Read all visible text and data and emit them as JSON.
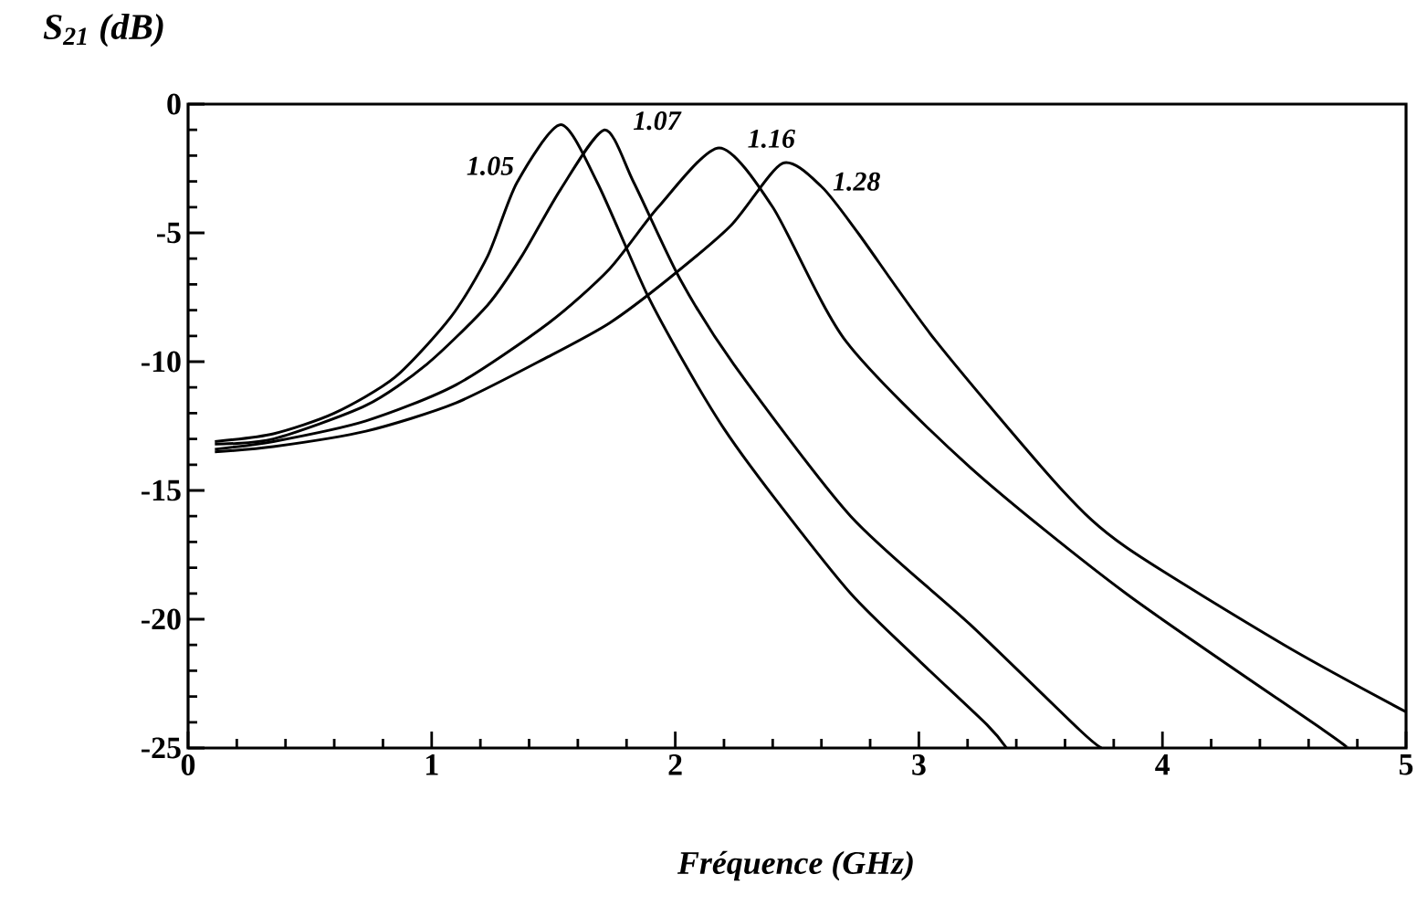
{
  "chart_data": {
    "type": "line",
    "xlabel": "Fréquence (GHz)",
    "ylabel": "S$_{21}$ (dB)",
    "xlim": [
      0,
      5
    ],
    "ylim": [
      -25,
      0
    ],
    "xticks": [
      0,
      1,
      2,
      3,
      4,
      5
    ],
    "yticks": [
      -25,
      -20,
      -15,
      -10,
      -5,
      0
    ],
    "grid": false,
    "marker": "none",
    "line_style": "solid",
    "series": [
      {
        "name": "1.05",
        "color": "#000000",
        "x": [
          0.11,
          0.35,
          0.6,
          0.85,
          1.08,
          1.23,
          1.35,
          1.53,
          1.68,
          1.88,
          2.04,
          2.2,
          2.4,
          2.72,
          3.0,
          3.28,
          3.36
        ],
        "values": [
          -13.1,
          -12.8,
          -12.0,
          -10.6,
          -8.25,
          -5.9,
          -3.05,
          -0.8,
          -3.05,
          -7.3,
          -10.1,
          -12.6,
          -15.2,
          -19.0,
          -21.6,
          -24.1,
          -25.0
        ]
      },
      {
        "name": "1.07",
        "color": "#000000",
        "x": [
          0.11,
          0.35,
          0.73,
          0.98,
          1.23,
          1.37,
          1.53,
          1.71,
          1.83,
          2.02,
          2.24,
          2.72,
          3.21,
          3.66,
          3.75
        ],
        "values": [
          -13.2,
          -13.0,
          -11.7,
          -10.1,
          -7.8,
          -5.9,
          -3.3,
          -1.0,
          -3.05,
          -6.8,
          -10.1,
          -16.0,
          -20.2,
          -24.3,
          -25.0
        ]
      },
      {
        "name": "1.16",
        "color": "#000000",
        "x": [
          0.11,
          0.35,
          0.73,
          1.1,
          1.48,
          1.73,
          1.93,
          2.18,
          2.4,
          2.7,
          3.21,
          3.85,
          4.66,
          4.76
        ],
        "values": [
          -13.4,
          -13.1,
          -12.3,
          -10.9,
          -8.5,
          -6.4,
          -4.0,
          -1.7,
          -4.0,
          -9.2,
          -14.1,
          -19.0,
          -24.3,
          -25.0
        ]
      },
      {
        "name": "1.28",
        "color": "#000000",
        "x": [
          0.11,
          0.35,
          0.73,
          1.1,
          1.48,
          1.73,
          1.97,
          2.23,
          2.44,
          2.6,
          2.75,
          3.07,
          3.58,
          3.85,
          4.5,
          5.0
        ],
        "values": [
          -13.5,
          -13.3,
          -12.7,
          -11.6,
          -9.8,
          -8.5,
          -6.8,
          -4.7,
          -2.3,
          -3.2,
          -5.0,
          -9.2,
          -14.9,
          -17.2,
          -21.0,
          -23.6
        ]
      }
    ]
  }
}
